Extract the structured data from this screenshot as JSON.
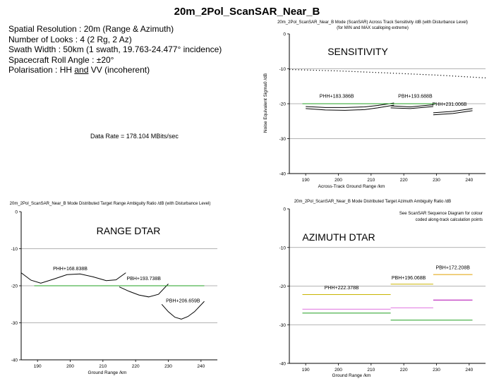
{
  "title": "20m_2Pol_ScanSAR_Near_B",
  "params": {
    "line1": "Spatial Resolution : 20m (Range & Azimuth)",
    "line2": "Number of Looks : 4 (2 Rg, 2 Az)",
    "line3": "Swath Width : 50km (1 swath, 19.763-24.477° incidence)",
    "line4": "Spacecraft Roll Angle : ±20°",
    "line5_pre": "Polarisation : HH ",
    "line5_and": "and",
    "line5_post": " VV (incoherent)"
  },
  "data_rate": "Data Rate = 178.104 MBits/sec",
  "chart_data": [
    {
      "id": "sensitivity",
      "type": "line",
      "title": "20m_2Pol_ScanSAR_Near_B Mode (ScanSAR) Across Track Sensitivity /dB (with Disturbance Level)",
      "subtitle": "(for MIN and MAX scalloping extreme)",
      "big_label": "SENSITIVITY",
      "xlabel": "Across-Track Ground Range /km",
      "ylabel": "Noise Equivalent Sigma0 /dB",
      "xlim": [
        185,
        245
      ],
      "ylim": [
        -40,
        0
      ],
      "xticks": [
        190,
        200,
        210,
        220,
        230,
        240
      ],
      "yticks": [
        0,
        -10,
        -20,
        -30,
        -40
      ],
      "ytick_labels": [
        "0",
        "-10",
        "-20",
        "-30",
        "-40"
      ],
      "series": [
        {
          "style": "dotted",
          "color": "#000000",
          "x": [
            185,
            200,
            215,
            230,
            245
          ],
          "y": [
            -10.2,
            -10.6,
            -11.2,
            -11.8,
            -12.6
          ]
        },
        {
          "color": "#000000",
          "x": [
            190,
            196,
            202,
            208,
            212,
            217
          ],
          "y": [
            -20.8,
            -21.1,
            -21.1,
            -20.9,
            -20.5,
            -19.8
          ]
        },
        {
          "color": "#000000",
          "x": [
            190,
            196,
            202,
            208,
            212,
            217
          ],
          "y": [
            -21.4,
            -21.8,
            -21.9,
            -21.7,
            -21.2,
            -20.4
          ]
        },
        {
          "color": "#000000",
          "x": [
            216,
            222,
            229
          ],
          "y": [
            -20.6,
            -20.9,
            -20.3
          ]
        },
        {
          "color": "#000000",
          "x": [
            216,
            222,
            229
          ],
          "y": [
            -21.2,
            -21.4,
            -20.8
          ]
        },
        {
          "color": "#000000",
          "x": [
            229,
            235,
            241
          ],
          "y": [
            -22.6,
            -22.2,
            -21.4
          ]
        },
        {
          "color": "#000000",
          "x": [
            229,
            235,
            241
          ],
          "y": [
            -23.2,
            -22.8,
            -22.0
          ]
        },
        {
          "color": "#22a022",
          "x": [
            189,
            230
          ],
          "y": [
            -20,
            -20
          ]
        }
      ],
      "labels": [
        {
          "text": "PHH+183.386B",
          "x": 199.5,
          "y": -18.3
        },
        {
          "text": "PBH+193.688B",
          "x": 223.5,
          "y": -18.3
        },
        {
          "text": "PHH+231.006B",
          "x": 234,
          "y": -20.6
        }
      ]
    },
    {
      "id": "range_dtar",
      "type": "line",
      "title": "20m_2Pol_ScanSAR_Near_B Mode Distributed Target Range Ambiguity Ratio /dB (with Disturbance Level)",
      "big_label": "RANGE DTAR",
      "xlabel": "Ground Range /km",
      "ylabel": "",
      "xlim": [
        185,
        245
      ],
      "ylim": [
        -40,
        0
      ],
      "xticks": [
        190,
        200,
        210,
        220,
        230,
        240
      ],
      "yticks": [
        0,
        -10,
        -20,
        -30,
        -40
      ],
      "ytick_labels": [
        "0",
        "-10",
        "-20",
        "-30",
        "-40"
      ],
      "series": [
        {
          "color": "#000000",
          "x": [
            185,
            188,
            191,
            195,
            199,
            203,
            207,
            211,
            214,
            217
          ],
          "y": [
            -16.5,
            -18.5,
            -19.3,
            -18.2,
            -17.0,
            -16.8,
            -17.6,
            -18.6,
            -18.4,
            -16.5
          ]
        },
        {
          "color": "#000000",
          "x": [
            215,
            218,
            221,
            224,
            227,
            230
          ],
          "y": [
            -20.3,
            -21.5,
            -22.5,
            -23.0,
            -22.3,
            -19.5
          ]
        },
        {
          "color": "#000000",
          "x": [
            228,
            230,
            232,
            234,
            236,
            238,
            241
          ],
          "y": [
            -25.0,
            -27.0,
            -28.5,
            -29.0,
            -28.3,
            -27.0,
            -24.2
          ]
        },
        {
          "color": "#22a022",
          "x": [
            189,
            241
          ],
          "y": [
            -20,
            -20
          ]
        }
      ],
      "labels": [
        {
          "text": "PHH+168.838B",
          "x": 200,
          "y": -15.8
        },
        {
          "text": "PBH+193.738B",
          "x": 222.5,
          "y": -18.5
        },
        {
          "text": "PBH+206.659B",
          "x": 234.5,
          "y": -24.5
        }
      ]
    },
    {
      "id": "azimuth_dtar",
      "type": "line",
      "title": "20m_2Pol_ScanSAR_Near_B Mode Distributed Target Azimuth Ambiguity Ratio /dB",
      "note_line1": "See ScanSAR Sequence Diagram for colour",
      "note_line2": "coded along-track calculation points",
      "big_label": "AZIMUTH DTAR",
      "xlabel": "Ground Range /km",
      "ylabel": "",
      "xlim": [
        185,
        245
      ],
      "ylim": [
        -40,
        0
      ],
      "xticks": [
        190,
        200,
        210,
        220,
        230,
        240
      ],
      "yticks": [
        0,
        -10,
        -20,
        -30,
        -40
      ],
      "ytick_labels": [
        "0",
        "-10",
        "-20",
        "-30",
        "-40"
      ],
      "series": [
        {
          "color": "#c8b400",
          "x": [
            189,
            216
          ],
          "y": [
            -22.2,
            -22.2
          ]
        },
        {
          "color": "#e070e0",
          "x": [
            189,
            216
          ],
          "y": [
            -26.0,
            -26.0
          ]
        },
        {
          "color": "#22a022",
          "x": [
            189,
            216
          ],
          "y": [
            -27.0,
            -27.0
          ]
        },
        {
          "color": "#c8b400",
          "x": [
            216,
            229
          ],
          "y": [
            -19.5,
            -19.5
          ]
        },
        {
          "color": "#e070e0",
          "x": [
            216,
            229
          ],
          "y": [
            -25.6,
            -25.6
          ]
        },
        {
          "color": "#22a022",
          "x": [
            216,
            241
          ],
          "y": [
            -28.8,
            -28.8
          ]
        },
        {
          "color": "#e0a000",
          "x": [
            229,
            241
          ],
          "y": [
            -17.0,
            -17.0
          ]
        },
        {
          "color": "#b000b0",
          "x": [
            229,
            241
          ],
          "y": [
            -23.6,
            -23.6
          ]
        }
      ],
      "labels": [
        {
          "text": "PHH+222.378B",
          "x": 201,
          "y": -20.8
        },
        {
          "text": "PBH+196.068B",
          "x": 221.5,
          "y": -18.3
        },
        {
          "text": "PBH+172.208B",
          "x": 235,
          "y": -15.6
        }
      ]
    }
  ]
}
